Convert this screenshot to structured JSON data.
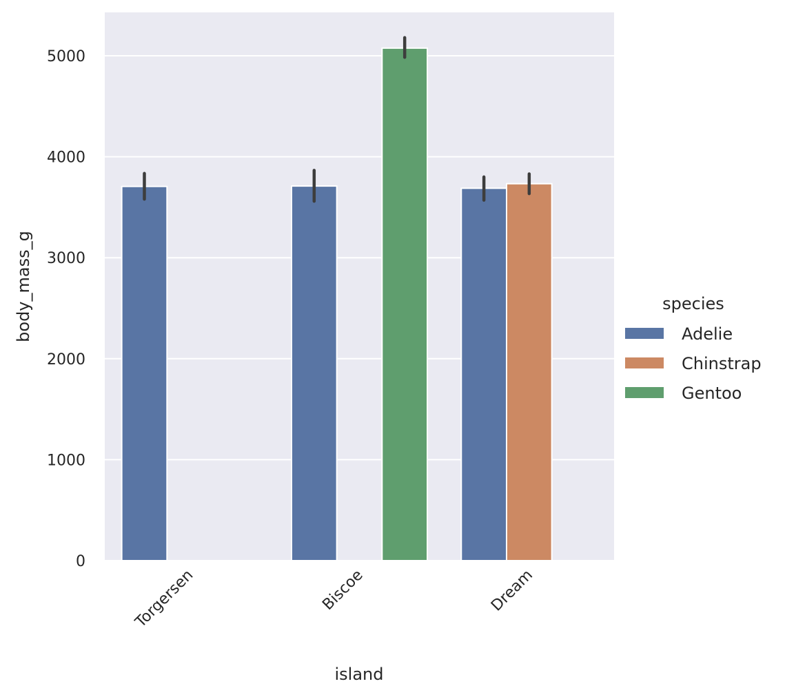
{
  "chart_data": {
    "type": "bar",
    "title": "",
    "xlabel": "island",
    "ylabel": "body_mass_g",
    "categories": [
      "Torgersen",
      "Biscoe",
      "Dream"
    ],
    "hue_order": [
      "Adelie",
      "Chinstrap",
      "Gentoo"
    ],
    "colors": {
      "Adelie": "#5975a4",
      "Chinstrap": "#cc8963",
      "Gentoo": "#5f9e6e"
    },
    "series": [
      {
        "name": "Adelie",
        "values": [
          3706,
          3710,
          3688
        ],
        "ci_low": [
          3580,
          3560,
          3570
        ],
        "ci_high": [
          3835,
          3865,
          3800
        ]
      },
      {
        "name": "Chinstrap",
        "values": [
          null,
          null,
          3733
        ],
        "ci_low": [
          null,
          null,
          3635
        ],
        "ci_high": [
          null,
          null,
          3830
        ]
      },
      {
        "name": "Gentoo",
        "values": [
          null,
          5076,
          null
        ],
        "ci_low": [
          null,
          4985,
          null
        ],
        "ci_high": [
          null,
          5180,
          null
        ]
      }
    ],
    "ylim": [
      0,
      5440
    ],
    "yticks": [
      0,
      1000,
      2000,
      3000,
      4000,
      5000
    ],
    "grid": true,
    "legend": {
      "title": "species",
      "placement": "right",
      "entries": [
        "Adelie",
        "Chinstrap",
        "Gentoo"
      ]
    }
  }
}
